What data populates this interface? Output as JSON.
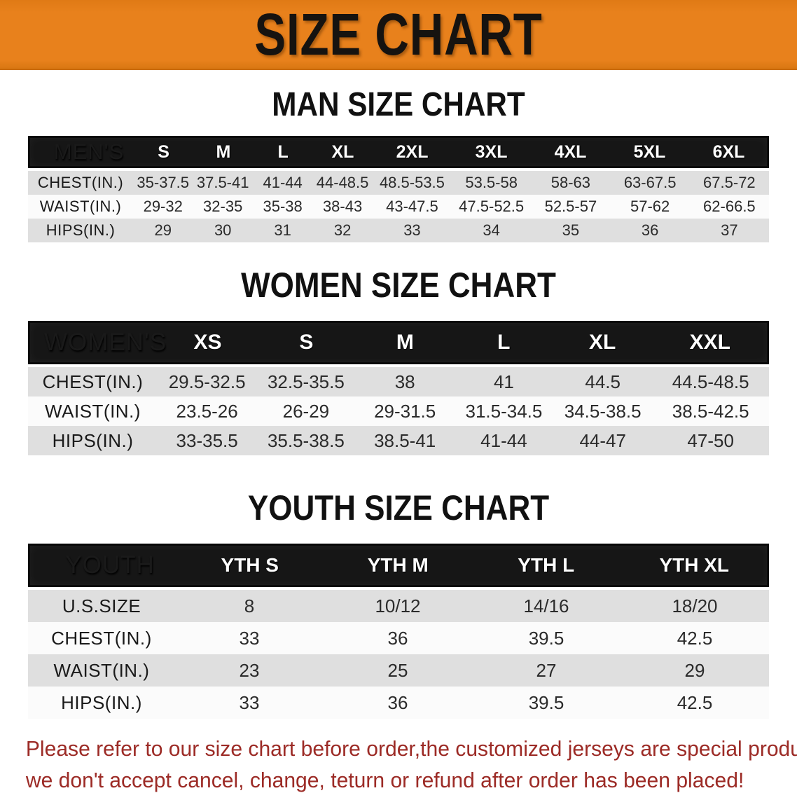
{
  "banner": {
    "title": "SIZE CHART",
    "bg_color": "#e8811c",
    "text_color": "#161310"
  },
  "colors": {
    "table_header_bg": "#161616",
    "table_header_text": "#ffffff",
    "row_shade": "#dfdfdf",
    "row_plain": "#fbfbfb",
    "disclaimer_red": "#9c2b26"
  },
  "sections": [
    {
      "id": "men",
      "title": "MAN SIZE CHART",
      "header_label": "MEN'S",
      "columns": [
        "S",
        "M",
        "L",
        "XL",
        "2XL",
        "3XL",
        "4XL",
        "5XL",
        "6XL"
      ],
      "rows": [
        {
          "label": "CHEST(IN.)",
          "values": [
            "35-37.5",
            "37.5-41",
            "41-44",
            "44-48.5",
            "48.5-53.5",
            "53.5-58",
            "58-63",
            "63-67.5",
            "67.5-72"
          ]
        },
        {
          "label": "WAIST(IN.)",
          "values": [
            "29-32",
            "32-35",
            "35-38",
            "38-43",
            "43-47.5",
            "47.5-52.5",
            "52.5-57",
            "57-62",
            "62-66.5"
          ]
        },
        {
          "label": "HIPS(IN.)",
          "values": [
            "29",
            "30",
            "31",
            "32",
            "33",
            "34",
            "35",
            "36",
            "37"
          ]
        }
      ]
    },
    {
      "id": "women",
      "title": "WOMEN SIZE CHART",
      "header_label": "WOMEN'S",
      "columns": [
        "XS",
        "S",
        "M",
        "L",
        "XL",
        "XXL"
      ],
      "rows": [
        {
          "label": "CHEST(IN.)",
          "values": [
            "29.5-32.5",
            "32.5-35.5",
            "38",
            "41",
            "44.5",
            "44.5-48.5"
          ]
        },
        {
          "label": "WAIST(IN.)",
          "values": [
            "23.5-26",
            "26-29",
            "29-31.5",
            "31.5-34.5",
            "34.5-38.5",
            "38.5-42.5"
          ]
        },
        {
          "label": "HIPS(IN.)",
          "values": [
            "33-35.5",
            "35.5-38.5",
            "38.5-41",
            "41-44",
            "44-47",
            "47-50"
          ]
        }
      ]
    },
    {
      "id": "youth",
      "title": "YOUTH SIZE CHART",
      "header_label": "YOUTH",
      "columns": [
        "YTH S",
        "YTH M",
        "YTH L",
        "YTH XL"
      ],
      "rows": [
        {
          "label": "U.S.SIZE",
          "values": [
            "8",
            "10/12",
            "14/16",
            "18/20"
          ]
        },
        {
          "label": "CHEST(IN.)",
          "values": [
            "33",
            "36",
            "39.5",
            "42.5"
          ]
        },
        {
          "label": "WAIST(IN.)",
          "values": [
            "23",
            "25",
            "27",
            "29"
          ]
        },
        {
          "label": "HIPS(IN.)",
          "values": [
            "33",
            "36",
            "39.5",
            "42.5"
          ]
        }
      ]
    }
  ],
  "footer": {
    "line1": "Please refer to our size chart before order,the customized jerseys are special products,",
    "line2": "we don't accept cancel, change, teturn or refund after order has been placed!"
  }
}
